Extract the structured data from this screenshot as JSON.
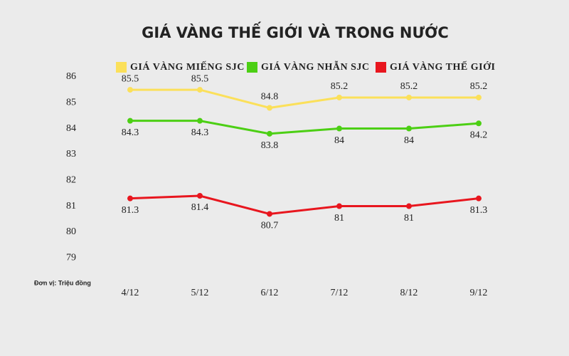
{
  "chart_data": {
    "type": "line",
    "title": "GIÁ VÀNG THẾ GIỚI VÀ TRONG NƯỚC",
    "annotation": "Đơn vị: Triệu đồng",
    "categories": [
      "4/12",
      "5/12",
      "6/12",
      "7/12",
      "8/12",
      "9/12"
    ],
    "series": [
      {
        "name": "GIÁ VÀNG MIẾNG SJC",
        "color": "#fbe05a",
        "values": [
          85.5,
          85.5,
          84.8,
          85.2,
          85.2,
          85.2
        ]
      },
      {
        "name": "GIÁ VÀNG NHẪN SJC",
        "color": "#4ccf14",
        "values": [
          84.3,
          84.3,
          83.8,
          84,
          84,
          84.2
        ]
      },
      {
        "name": "GIÁ VÀNG THẾ GIỚI",
        "color": "#e8161e",
        "values": [
          81.3,
          81.4,
          80.7,
          81,
          81,
          81.3
        ]
      }
    ],
    "ylim": [
      78.4,
      86.3
    ],
    "yticks": [
      79,
      80,
      81,
      82,
      83,
      84,
      85,
      86
    ],
    "grid": false,
    "legend": "top"
  }
}
